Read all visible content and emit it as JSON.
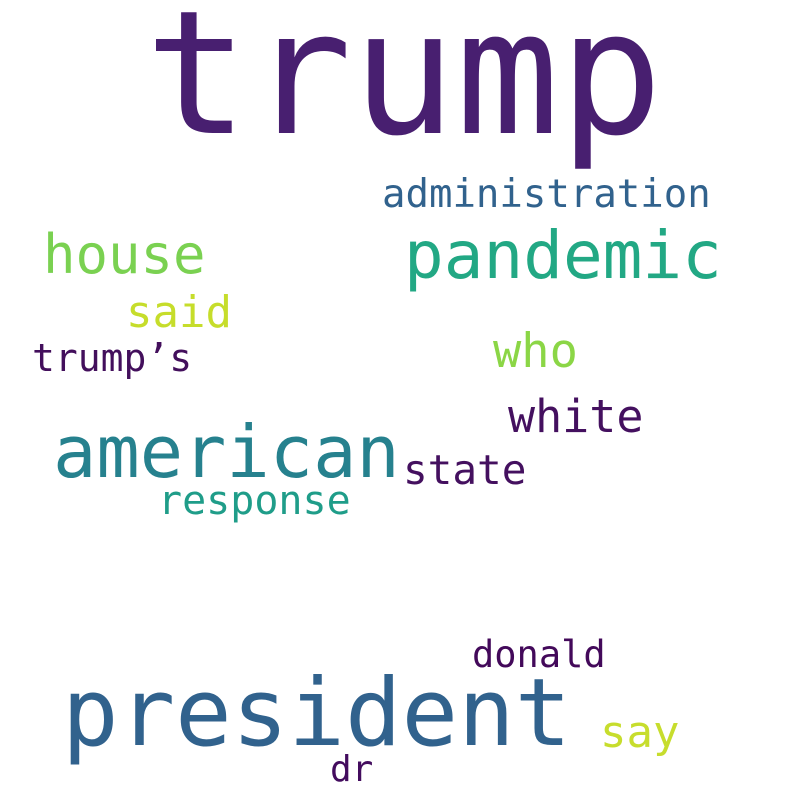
{
  "words": [
    {
      "text": "trump",
      "color": "#481f70"
    },
    {
      "text": "president",
      "color": "#31628d"
    },
    {
      "text": "american",
      "color": "#26818e"
    },
    {
      "text": "pandemic",
      "color": "#22a884"
    },
    {
      "text": "house",
      "color": "#7ad151"
    },
    {
      "text": "administration",
      "color": "#31628d"
    },
    {
      "text": "white",
      "color": "#44105f"
    },
    {
      "text": "who",
      "color": "#8bd646"
    },
    {
      "text": "said",
      "color": "#c6dd2b"
    },
    {
      "text": "trump’s",
      "color": "#430f5c"
    },
    {
      "text": "state",
      "color": "#44105f"
    },
    {
      "text": "response",
      "color": "#1f9d89"
    },
    {
      "text": "donald",
      "color": "#43095a"
    },
    {
      "text": "say",
      "color": "#c7dd2d"
    },
    {
      "text": "dr",
      "color": "#430c5e"
    }
  ]
}
